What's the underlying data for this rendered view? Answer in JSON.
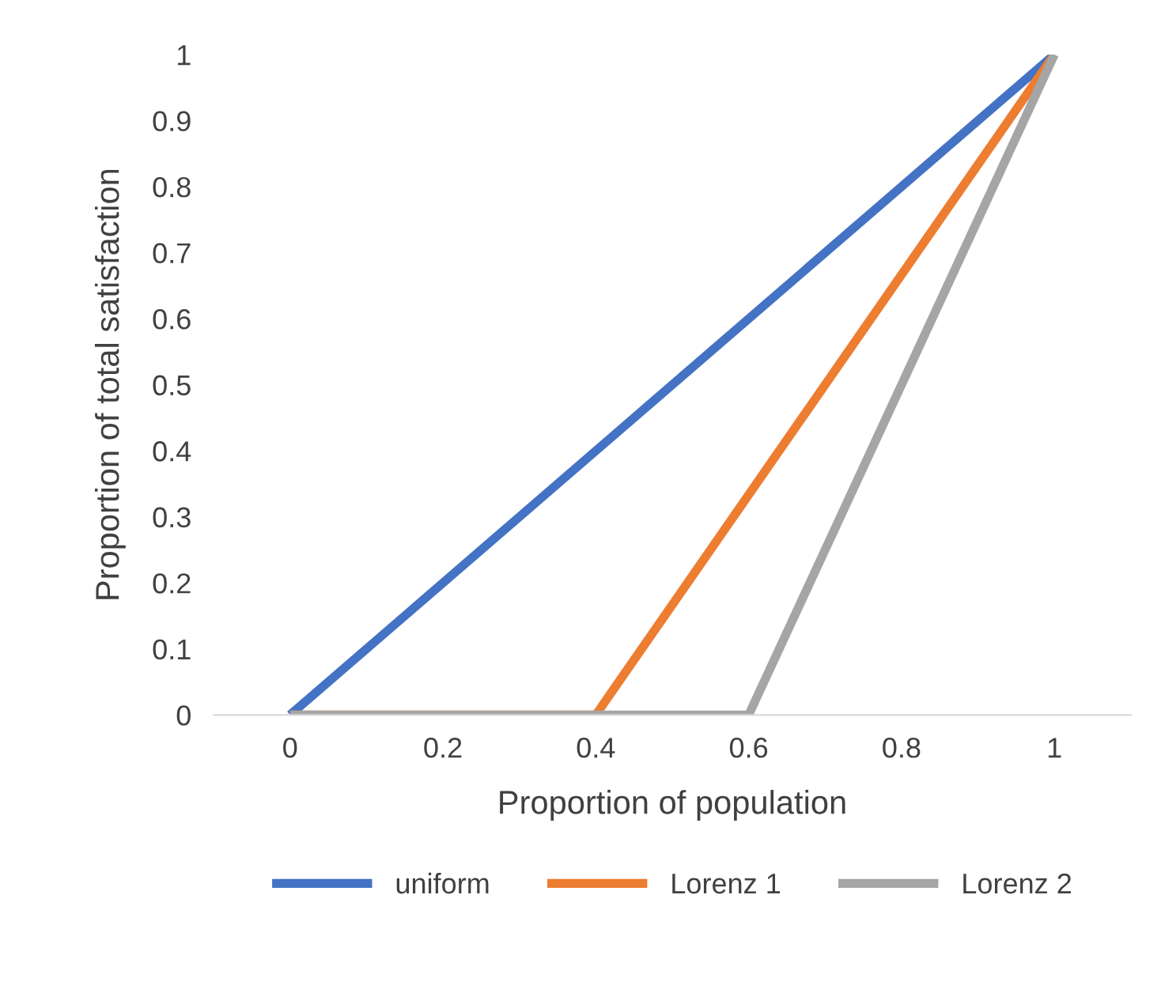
{
  "chart_data": {
    "type": "line",
    "xlabel": "Proportion of population",
    "ylabel": "Proportion of total satisfaction",
    "xlim": [
      -0.1,
      1.1
    ],
    "xticks": [
      0,
      0.2,
      0.4,
      0.6,
      0.8,
      1
    ],
    "ylim": [
      0,
      1
    ],
    "yticks": [
      0,
      0.1,
      0.2,
      0.3,
      0.4,
      0.5,
      0.6,
      0.7,
      0.8,
      0.9,
      1
    ],
    "grid": false,
    "legend": "bottom",
    "marker": "none",
    "line_style": "solid",
    "series": [
      {
        "name": "uniform",
        "color": "#4472c4",
        "x": [
          0,
          1
        ],
        "values": [
          0,
          1
        ]
      },
      {
        "name": "Lorenz 1",
        "color": "#ed7d31",
        "x": [
          0,
          0.4,
          1
        ],
        "values": [
          0,
          0,
          1
        ]
      },
      {
        "name": "Lorenz 2",
        "color": "#a5a5a5",
        "x": [
          0,
          0.6,
          1
        ],
        "values": [
          0,
          0,
          1
        ]
      }
    ]
  }
}
